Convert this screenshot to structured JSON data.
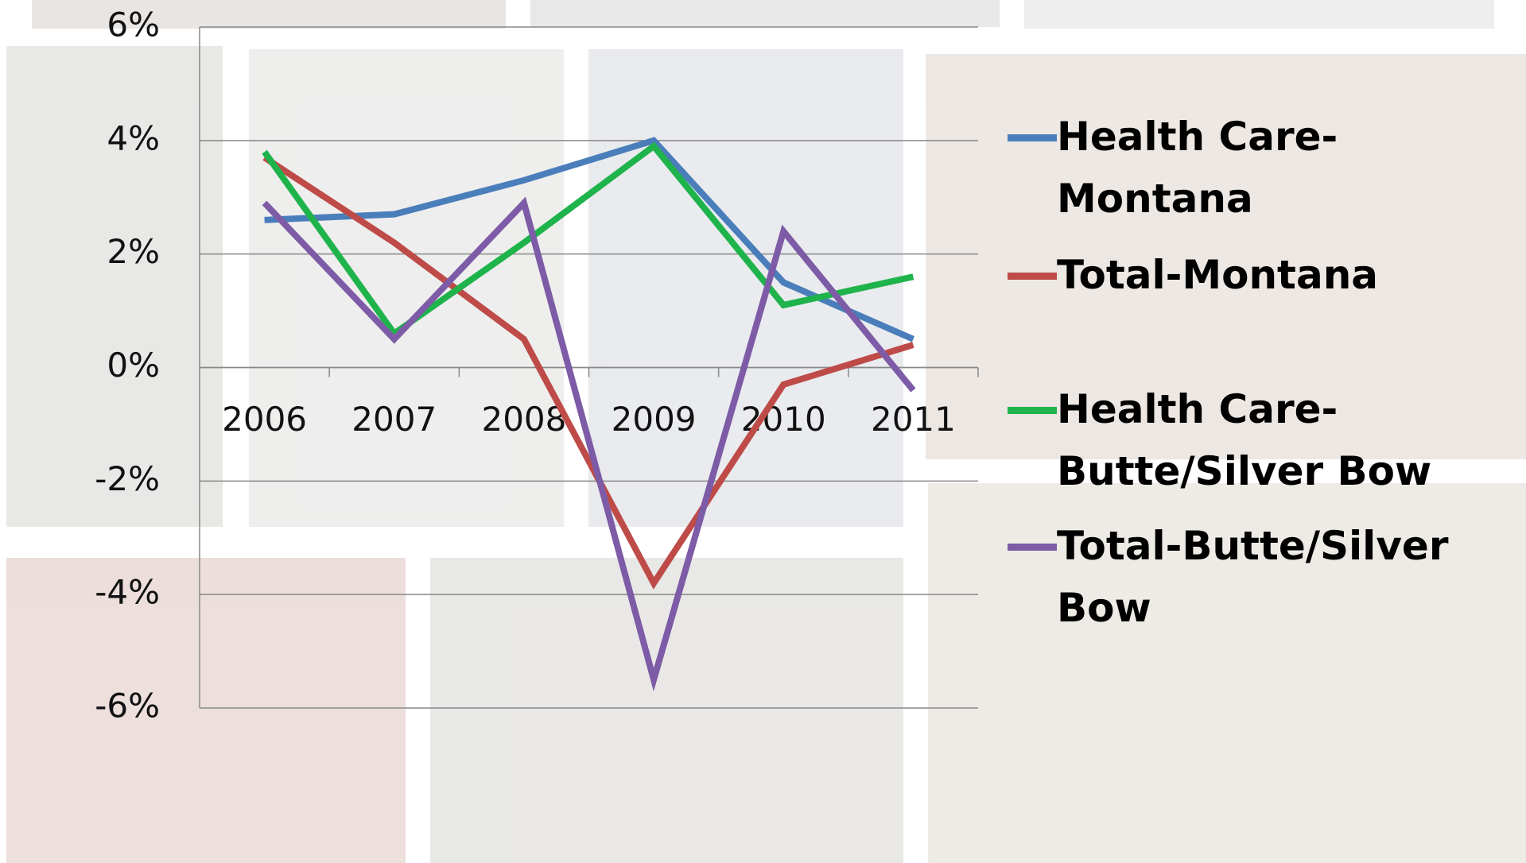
{
  "chart_data": {
    "type": "line",
    "categories": [
      "2006",
      "2007",
      "2008",
      "2009",
      "2010",
      "2011"
    ],
    "series": [
      {
        "name": "Health Care-Montana",
        "color": "#4a7ebb",
        "values": [
          2.6,
          2.7,
          3.3,
          4.0,
          1.5,
          0.5
        ]
      },
      {
        "name": "Total-Montana",
        "color": "#be4b48",
        "values": [
          3.7,
          2.2,
          0.5,
          -3.8,
          -0.3,
          0.4
        ]
      },
      {
        "name": "Health Care-Butte/Silver Bow",
        "color": "#1fb34b",
        "values": [
          3.8,
          0.6,
          2.2,
          3.9,
          1.1,
          1.6
        ]
      },
      {
        "name": "Total-Butte/Silver Bow",
        "color": "#7d5ba6",
        "values": [
          2.9,
          0.5,
          2.9,
          -5.5,
          2.4,
          -0.4
        ]
      }
    ],
    "ylim": [
      -6,
      6
    ],
    "yticks": [
      {
        "value": -6,
        "label": "-6%"
      },
      {
        "value": -4,
        "label": "-4%"
      },
      {
        "value": -2,
        "label": "-2%"
      },
      {
        "value": 0,
        "label": "0%"
      },
      {
        "value": 2,
        "label": "2%"
      },
      {
        "value": 4,
        "label": "4%"
      },
      {
        "value": 6,
        "label": "6%"
      }
    ],
    "grid": true,
    "legend": "right"
  }
}
